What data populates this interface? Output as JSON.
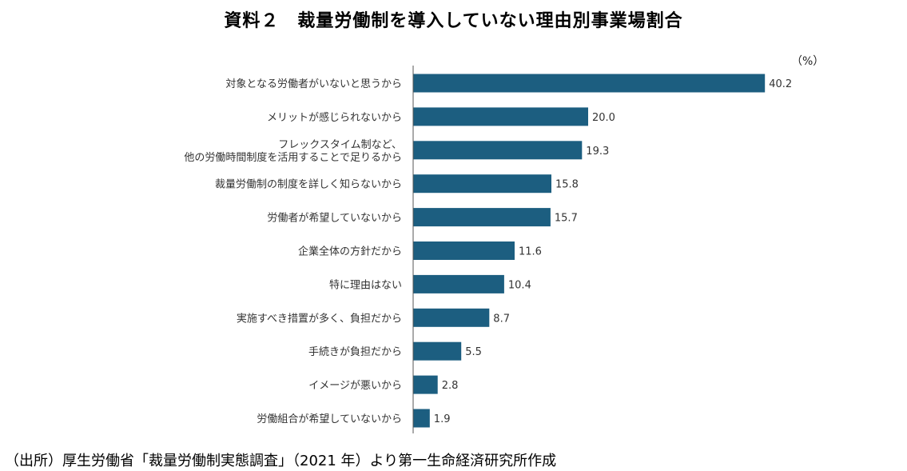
{
  "chart_data": {
    "type": "bar",
    "orientation": "horizontal",
    "title": "資料２　裁量労働制を導入していない理由別事業場割合",
    "unit": "（%）",
    "xlabel": "",
    "ylabel": "",
    "xlim": [
      0,
      45
    ],
    "grid": false,
    "legend": "none",
    "bar_color": "#1c5e80",
    "categories": [
      "対象となる労働者がいないと思うから",
      "メリットが感じられないから",
      [
        "フレックスタイム制など、",
        "他の労働時間制度を活用することで足りるから"
      ],
      "裁量労働制の制度を詳しく知らないから",
      "労働者が希望していないから",
      "企業全体の方針だから",
      "特に理由はない",
      "実施すべき措置が多く、負担だから",
      "手続きが負担だから",
      "イメージが悪いから",
      "労働組合が希望していないから"
    ],
    "values": [
      40.2,
      20.0,
      19.3,
      15.8,
      15.7,
      11.6,
      10.4,
      8.7,
      5.5,
      2.8,
      1.9
    ],
    "value_labels": [
      "40.2",
      "20.0",
      "19.3",
      "15.8",
      "15.7",
      "11.6",
      "10.4",
      "8.7",
      "5.5",
      "2.8",
      "1.9"
    ]
  },
  "source_note": "（出所）厚生労働省「裁量労働制実態調査」（2021 年）より第一生命経済研究所作成"
}
